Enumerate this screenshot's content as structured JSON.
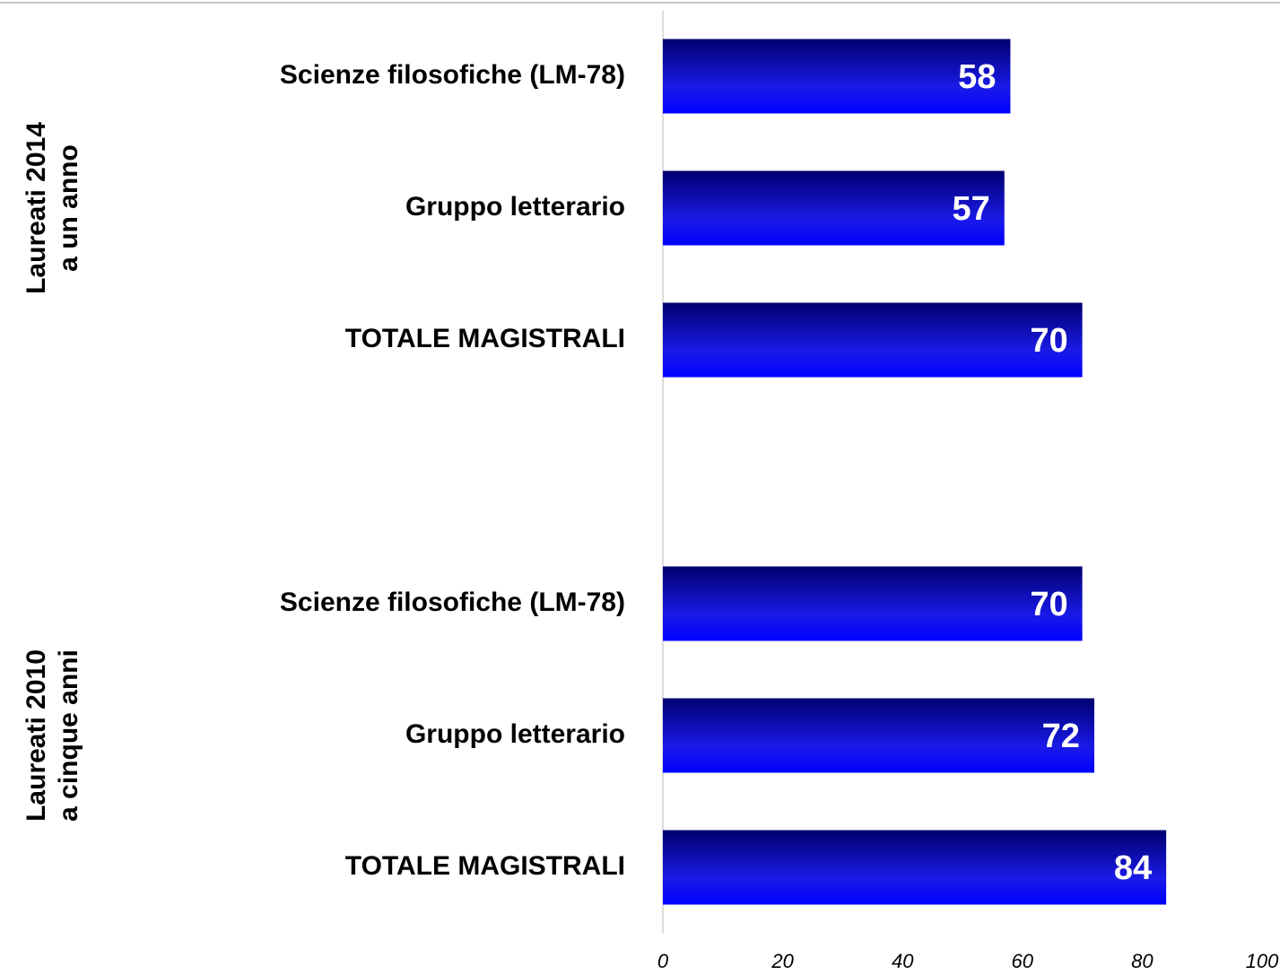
{
  "chart_data": {
    "type": "barh",
    "categories": [
      "Scienze filosofiche (LM-78)",
      "Gruppo letterario",
      "TOTALE MAGISTRALI",
      null,
      "Scienze filosofiche (LM-78)",
      "Gruppo letterario",
      "TOTALE MAGISTRALI"
    ],
    "values": [
      58,
      57,
      70,
      null,
      70,
      72,
      84
    ],
    "color": "#0000ff",
    "xlim": [
      0,
      100
    ],
    "xticks": [
      0,
      20,
      40,
      60,
      80,
      100
    ],
    "groups": [
      {
        "lines": [
          "Laureati 2014",
          "a un anno"
        ],
        "first": 0,
        "last": 2
      },
      {
        "lines": [
          "Laureati 2010",
          "a cinque anni"
        ],
        "first": 4,
        "last": 6
      }
    ]
  }
}
